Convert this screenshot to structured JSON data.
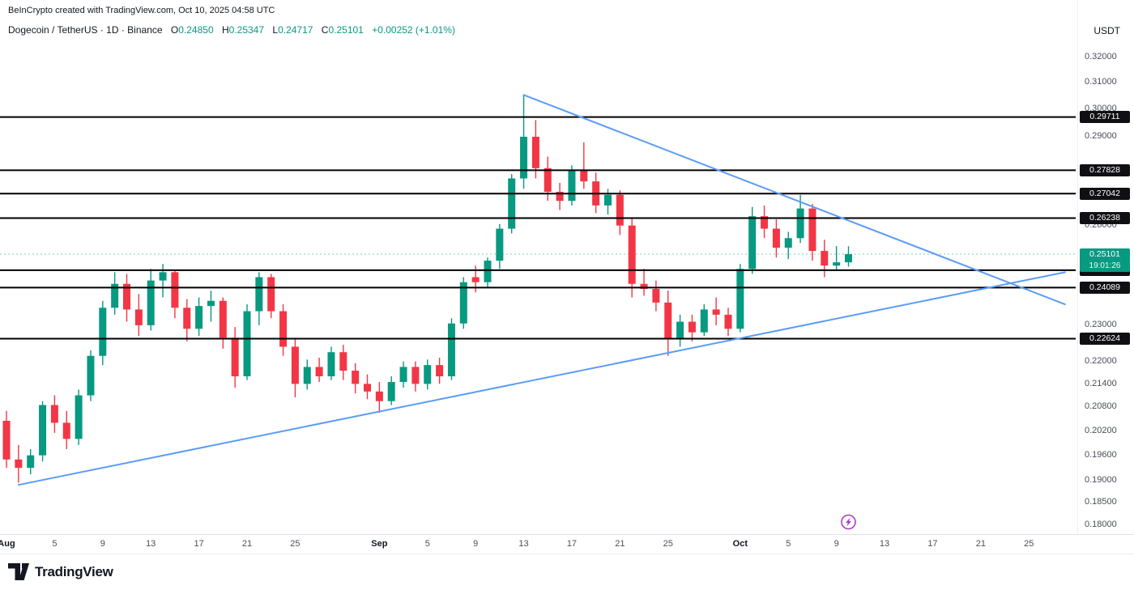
{
  "attribution": "BeInCrypto created with TradingView.com, Oct 10, 2025 04:58 UTC",
  "header": {
    "title": "Dogecoin / TetherUS · 1D · Binance",
    "currency": "USDT",
    "ohlc": {
      "o_label": "O",
      "o_value": "0.24850",
      "h_label": "H",
      "h_value": "0.25347",
      "l_label": "L",
      "l_value": "0.24717",
      "c_label": "C",
      "c_value": "0.25101",
      "change": "+0.00252 (+1.01%)"
    }
  },
  "footer": {
    "brand": "TradingView"
  },
  "colors": {
    "up": "#089981",
    "down": "#F23645",
    "trendline": "#5B9CF6",
    "level_line": "#000000",
    "badge_bg": "#101014",
    "last_price_bg": "#089981",
    "marker": "#B03BC8",
    "axis_text": "#4A4E59",
    "text": "#131722"
  },
  "chart_data": {
    "type": "candlestick",
    "title": "Dogecoin / TetherUS",
    "symbol": "DOGEUSDT",
    "exchange": "Binance",
    "interval": "1D",
    "price_scale": {
      "mode": "log",
      "min": 0.1779,
      "max": 0.3245
    },
    "x_scale": {
      "start_date": "2025-08-01",
      "end_date": "2025-10-29"
    },
    "grid": false,
    "legend_position": "top-left",
    "last_price": {
      "value": 0.25101,
      "countdown": "19:01:26",
      "direction": "up"
    },
    "price_ticks": [
      0.32,
      0.31,
      0.3,
      0.29,
      0.26,
      0.23,
      0.22,
      0.214,
      0.208,
      0.202,
      0.196,
      0.19,
      0.185,
      0.18
    ],
    "horizontal_levels": [
      0.29711,
      0.27828,
      0.27042,
      0.26238,
      0.2461,
      0.24089,
      0.22624
    ],
    "trendlines": [
      {
        "name": "descending-trendline",
        "from": {
          "date": "2025-09-13",
          "price": 0.3053
        },
        "to": {
          "date": "2025-10-28",
          "price": 0.236
        },
        "color": "#5B9CF6"
      },
      {
        "name": "ascending-trendline",
        "from": {
          "date": "2025-08-02",
          "price": 0.189
        },
        "to": {
          "date": "2025-10-28",
          "price": 0.2455
        },
        "color": "#5B9CF6"
      }
    ],
    "event_marker": {
      "date": "2025-10-10",
      "icon": "lightning-in-circle",
      "color": "#B03BC8"
    },
    "time_ticks": [
      {
        "label": "Aug",
        "date": "2025-08-01",
        "month": true
      },
      {
        "label": "5",
        "date": "2025-08-05"
      },
      {
        "label": "9",
        "date": "2025-08-09"
      },
      {
        "label": "13",
        "date": "2025-08-13"
      },
      {
        "label": "17",
        "date": "2025-08-17"
      },
      {
        "label": "21",
        "date": "2025-08-21"
      },
      {
        "label": "25",
        "date": "2025-08-25"
      },
      {
        "label": "Sep",
        "date": "2025-09-01",
        "month": true
      },
      {
        "label": "5",
        "date": "2025-09-05"
      },
      {
        "label": "9",
        "date": "2025-09-09"
      },
      {
        "label": "13",
        "date": "2025-09-13"
      },
      {
        "label": "17",
        "date": "2025-09-17"
      },
      {
        "label": "21",
        "date": "2025-09-21"
      },
      {
        "label": "25",
        "date": "2025-09-25"
      },
      {
        "label": "Oct",
        "date": "2025-10-01",
        "month": true
      },
      {
        "label": "5",
        "date": "2025-10-05"
      },
      {
        "label": "9",
        "date": "2025-10-09"
      },
      {
        "label": "13",
        "date": "2025-10-13"
      },
      {
        "label": "17",
        "date": "2025-10-17"
      },
      {
        "label": "21",
        "date": "2025-10-21"
      },
      {
        "label": "25",
        "date": "2025-10-25"
      }
    ],
    "candles": [
      [
        "2025-08-01",
        0.2045,
        0.207,
        0.193,
        0.195
      ],
      [
        "2025-08-02",
        0.195,
        0.1985,
        0.1895,
        0.193
      ],
      [
        "2025-08-03",
        0.193,
        0.1975,
        0.1915,
        0.196
      ],
      [
        "2025-08-04",
        0.196,
        0.2095,
        0.1945,
        0.2085
      ],
      [
        "2025-08-05",
        0.2085,
        0.211,
        0.2015,
        0.204
      ],
      [
        "2025-08-06",
        0.204,
        0.207,
        0.1975,
        0.2
      ],
      [
        "2025-08-07",
        0.2,
        0.2125,
        0.1985,
        0.211
      ],
      [
        "2025-08-08",
        0.211,
        0.223,
        0.2095,
        0.2215
      ],
      [
        "2025-08-09",
        0.2215,
        0.237,
        0.219,
        0.235
      ],
      [
        "2025-08-10",
        0.235,
        0.2455,
        0.233,
        0.242
      ],
      [
        "2025-08-11",
        0.242,
        0.245,
        0.231,
        0.2345
      ],
      [
        "2025-08-12",
        0.2345,
        0.239,
        0.227,
        0.23
      ],
      [
        "2025-08-13",
        0.23,
        0.2465,
        0.2285,
        0.243
      ],
      [
        "2025-08-14",
        0.243,
        0.248,
        0.238,
        0.2455
      ],
      [
        "2025-08-15",
        0.2455,
        0.246,
        0.232,
        0.235
      ],
      [
        "2025-08-16",
        0.235,
        0.2375,
        0.2255,
        0.229
      ],
      [
        "2025-08-17",
        0.229,
        0.238,
        0.227,
        0.2355
      ],
      [
        "2025-08-18",
        0.2355,
        0.24,
        0.231,
        0.237
      ],
      [
        "2025-08-19",
        0.237,
        0.238,
        0.2235,
        0.2265
      ],
      [
        "2025-08-20",
        0.2265,
        0.2295,
        0.213,
        0.216
      ],
      [
        "2025-08-21",
        0.216,
        0.236,
        0.215,
        0.234
      ],
      [
        "2025-08-22",
        0.234,
        0.2455,
        0.23,
        0.244
      ],
      [
        "2025-08-23",
        0.244,
        0.245,
        0.232,
        0.234
      ],
      [
        "2025-08-24",
        0.234,
        0.236,
        0.2215,
        0.224
      ],
      [
        "2025-08-25",
        0.224,
        0.2265,
        0.2105,
        0.214
      ],
      [
        "2025-08-26",
        0.214,
        0.2205,
        0.2125,
        0.2185
      ],
      [
        "2025-08-27",
        0.2185,
        0.221,
        0.2145,
        0.216
      ],
      [
        "2025-08-28",
        0.216,
        0.224,
        0.215,
        0.2225
      ],
      [
        "2025-08-29",
        0.2225,
        0.2245,
        0.215,
        0.2175
      ],
      [
        "2025-08-30",
        0.2175,
        0.2195,
        0.2115,
        0.214
      ],
      [
        "2025-08-31",
        0.214,
        0.2165,
        0.21,
        0.212
      ],
      [
        "2025-09-01",
        0.212,
        0.2145,
        0.2065,
        0.2095
      ],
      [
        "2025-09-02",
        0.2095,
        0.216,
        0.2085,
        0.2145
      ],
      [
        "2025-09-03",
        0.2145,
        0.22,
        0.213,
        0.2185
      ],
      [
        "2025-09-04",
        0.2185,
        0.22,
        0.212,
        0.214
      ],
      [
        "2025-09-05",
        0.214,
        0.2205,
        0.2125,
        0.219
      ],
      [
        "2025-09-06",
        0.219,
        0.221,
        0.214,
        0.216
      ],
      [
        "2025-09-07",
        0.216,
        0.232,
        0.215,
        0.2305
      ],
      [
        "2025-09-08",
        0.2305,
        0.244,
        0.229,
        0.2425
      ],
      [
        "2025-09-09",
        0.244,
        0.2475,
        0.2395,
        0.2425
      ],
      [
        "2025-09-10",
        0.2425,
        0.25,
        0.241,
        0.249
      ],
      [
        "2025-09-11",
        0.249,
        0.2605,
        0.2465,
        0.259
      ],
      [
        "2025-09-12",
        0.259,
        0.277,
        0.2575,
        0.2755
      ],
      [
        "2025-09-13",
        0.2755,
        0.3053,
        0.272,
        0.29
      ],
      [
        "2025-09-14",
        0.29,
        0.296,
        0.2755,
        0.279
      ],
      [
        "2025-09-15",
        0.279,
        0.283,
        0.268,
        0.271
      ],
      [
        "2025-09-16",
        0.271,
        0.274,
        0.265,
        0.268
      ],
      [
        "2025-09-17",
        0.268,
        0.28,
        0.2665,
        0.2785
      ],
      [
        "2025-09-18",
        0.2785,
        0.288,
        0.272,
        0.2745
      ],
      [
        "2025-09-19",
        0.2745,
        0.2775,
        0.264,
        0.2665
      ],
      [
        "2025-09-20",
        0.2665,
        0.272,
        0.2635,
        0.27
      ],
      [
        "2025-09-21",
        0.27,
        0.2715,
        0.257,
        0.26
      ],
      [
        "2025-09-22",
        0.26,
        0.2625,
        0.238,
        0.242
      ],
      [
        "2025-09-23",
        0.242,
        0.2465,
        0.2385,
        0.2405
      ],
      [
        "2025-09-24",
        0.2405,
        0.243,
        0.234,
        0.2365
      ],
      [
        "2025-09-25",
        0.2365,
        0.24,
        0.2215,
        0.226
      ],
      [
        "2025-09-26",
        0.226,
        0.233,
        0.224,
        0.231
      ],
      [
        "2025-09-27",
        0.231,
        0.233,
        0.2255,
        0.228
      ],
      [
        "2025-09-28",
        0.228,
        0.236,
        0.227,
        0.2345
      ],
      [
        "2025-09-29",
        0.2345,
        0.238,
        0.23,
        0.233
      ],
      [
        "2025-09-30",
        0.233,
        0.235,
        0.227,
        0.229
      ],
      [
        "2025-10-01",
        0.229,
        0.248,
        0.228,
        0.2465
      ],
      [
        "2025-10-02",
        0.2465,
        0.266,
        0.245,
        0.263
      ],
      [
        "2025-10-03",
        0.263,
        0.2665,
        0.256,
        0.259
      ],
      [
        "2025-10-04",
        0.259,
        0.262,
        0.25,
        0.253
      ],
      [
        "2025-10-05",
        0.253,
        0.258,
        0.2495,
        0.256
      ],
      [
        "2025-10-06",
        0.256,
        0.27,
        0.2545,
        0.2655
      ],
      [
        "2025-10-07",
        0.2655,
        0.267,
        0.249,
        0.252
      ],
      [
        "2025-10-08",
        0.252,
        0.2555,
        0.244,
        0.2475
      ],
      [
        "2025-10-09",
        0.2475,
        0.2535,
        0.246,
        0.2485
      ],
      [
        "2025-10-10",
        0.2485,
        0.25347,
        0.24717,
        0.25101
      ]
    ]
  }
}
